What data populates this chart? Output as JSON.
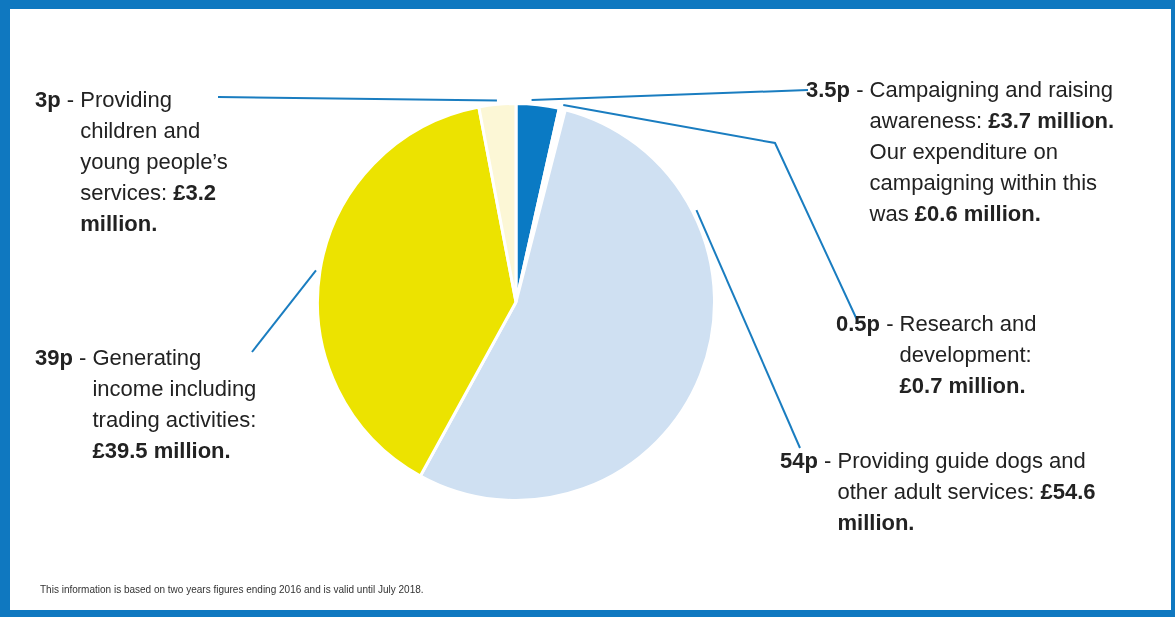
{
  "chart_data": {
    "type": "pie",
    "categories": [
      "3.5p - Campaigning and raising awareness: £3.7 million. Our expenditure on campaigning within this was £0.6 million.",
      "0.5p - Research and development: £0.7 million.",
      "54p - Providing guide dogs and other adult services: £54.6 million.",
      "39p - Generating income including trading activities: £39.5 million.",
      "3p - Providing children and young people’s services: £3.2 million."
    ],
    "values": [
      3.5,
      0.5,
      54,
      39,
      3
    ],
    "colors": [
      "#0a7ac4",
      "#ffffff",
      "#cfe0f2",
      "#ece300",
      "#fcf7d6"
    ],
    "legend": false,
    "annotations": [
      "This information is based on two years figures ending 2016 and is valid until July 2018."
    ]
  }
}
